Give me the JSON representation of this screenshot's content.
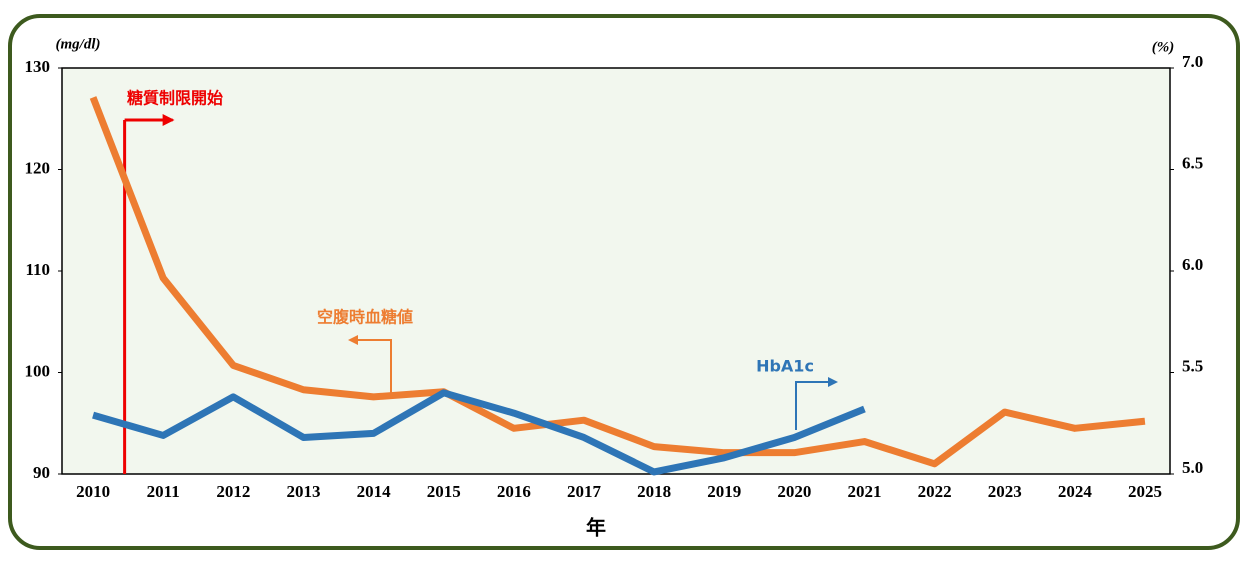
{
  "chart_data": {
    "type": "line",
    "x_label": "年",
    "y_label": "(mg/dl)",
    "y2_label": "(%)",
    "annotation": "糖質制限開始",
    "categories": [
      "2010",
      "2011",
      "2012",
      "2013",
      "2014",
      "2015",
      "2016",
      "2017",
      "2018",
      "2019",
      "2020",
      "2021",
      "2022",
      "2023",
      "2024",
      "2025"
    ],
    "series": [
      {
        "name": "空腹時血糖値",
        "color": "#ed7d31",
        "values": [
          127.1,
          109.3,
          100.7,
          98.3,
          97.6,
          98.1,
          94.5,
          95.3,
          92.7,
          92.1,
          92.1,
          93.2,
          91.0,
          96.1,
          94.5,
          95.2
        ]
      },
      {
        "name": "HbA1c",
        "color": "#2e75b6",
        "axis": "y2",
        "values": [
          5.29,
          5.19,
          5.38,
          5.18,
          5.2,
          5.4,
          5.3,
          5.18,
          5.01,
          5.08,
          5.18,
          5.32,
          null,
          null,
          null,
          null
        ]
      }
    ],
    "ylim": [
      90,
      130
    ],
    "yticks": [
      90,
      100,
      110,
      120,
      130
    ],
    "y2lim": [
      5,
      7
    ],
    "y2ticks": [
      {
        "value": 5,
        "label": "5.0"
      },
      {
        "value": 5.5,
        "label": "5.5"
      },
      {
        "value": 6,
        "label": "6.0"
      },
      {
        "value": 6.5,
        "label": "6.5"
      },
      {
        "value": 7,
        "label": "7.0"
      }
    ],
    "grid": false
  }
}
